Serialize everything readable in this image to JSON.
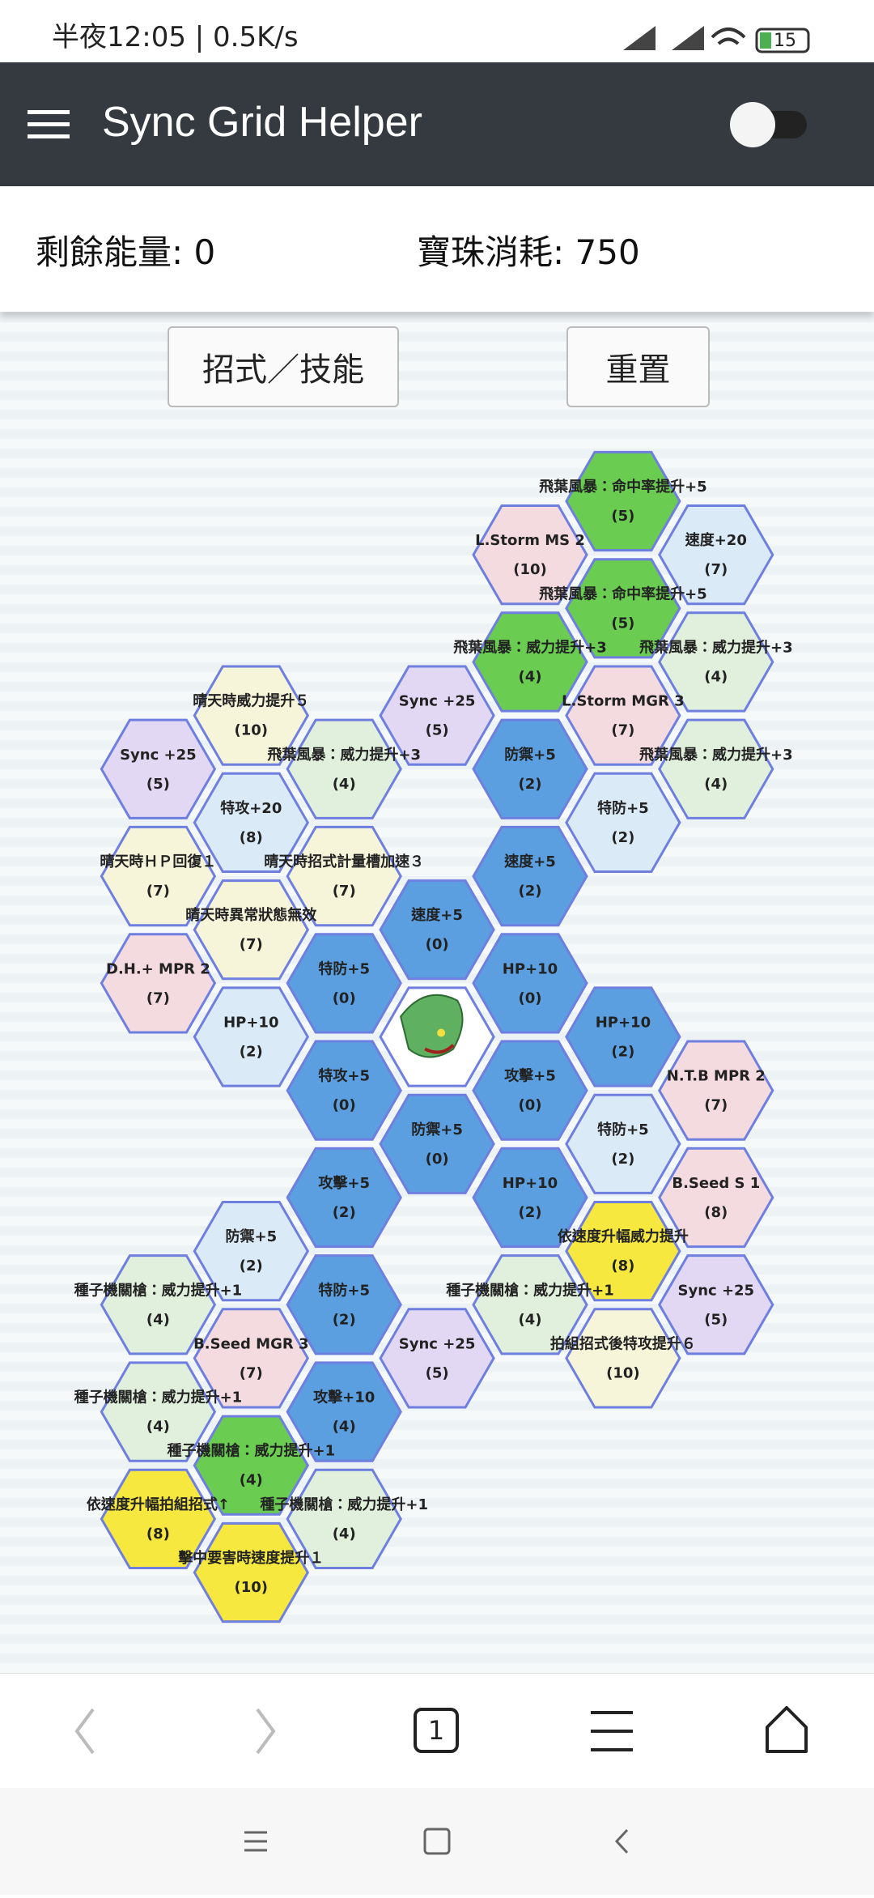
{
  "status_bar": {
    "time": "半夜12:05 | 0.5K/s",
    "battery": "15"
  },
  "app_bar": {
    "title": "Sync Grid Helper"
  },
  "info": {
    "energy": "剩餘能量: 0",
    "orb_cost": "寶珠消耗: 750"
  },
  "buttons": [
    "招式／技能",
    "重置"
  ],
  "grid": {
    "nodes": [
      {
        "label": "飛葉風暴：命中率提升+5",
        "cost": "(5)",
        "color": "#6acc50"
      },
      {
        "label": "L.Storm MS 2",
        "cost": "(10)",
        "color": "#f4dbe0"
      },
      {
        "label": "速度+20",
        "cost": "(7)",
        "color": "#dbeaf7"
      },
      {
        "label": "飛葉風暴：命中率提升+5",
        "cost": "(5)",
        "color": "#6acc50"
      },
      {
        "label": "飛葉風暴：威力提升+3",
        "cost": "(4)",
        "color": "#6acc50"
      },
      {
        "label": "飛葉風暴：威力提升+3",
        "cost": "(4)",
        "color": "#e1f0dc"
      },
      {
        "label": "晴天時威力提升５",
        "cost": "(10)",
        "color": "#f6f4d9"
      },
      {
        "label": "Sync +25",
        "cost": "(5)",
        "color": "#e3d8f4"
      },
      {
        "label": "L.Storm MGR 3",
        "cost": "(7)",
        "color": "#f4dbe0"
      },
      {
        "label": "Sync +25",
        "cost": "(5)",
        "color": "#e3d8f4"
      },
      {
        "label": "飛葉風暴：威力提升+3",
        "cost": "(4)",
        "color": "#e1f0dc"
      },
      {
        "label": "防禦+5",
        "cost": "(2)",
        "color": "#5b9fe0"
      },
      {
        "label": "飛葉風暴：威力提升+3",
        "cost": "(4)",
        "color": "#e1f0dc"
      },
      {
        "label": "特攻+20",
        "cost": "(8)",
        "color": "#dbeaf7"
      },
      {
        "label": "特防+5",
        "cost": "(2)",
        "color": "#dbeaf7"
      },
      {
        "label": "晴天時ＨＰ回復１",
        "cost": "(7)",
        "color": "#f6f4d9"
      },
      {
        "label": "晴天時招式計量槽加速３",
        "cost": "(7)",
        "color": "#f6f4d9"
      },
      {
        "label": "速度+5",
        "cost": "(2)",
        "color": "#5b9fe0"
      },
      {
        "label": "晴天時異常狀態無效",
        "cost": "(7)",
        "color": "#f6f4d9"
      },
      {
        "label": "速度+5",
        "cost": "(0)",
        "color": "#5b9fe0"
      },
      {
        "label": "D.H.+ MPR 2",
        "cost": "(7)",
        "color": "#f4dbe0"
      },
      {
        "label": "特防+5",
        "cost": "(0)",
        "color": "#5b9fe0"
      },
      {
        "label": "HP+10",
        "cost": "(0)",
        "color": "#5b9fe0"
      },
      {
        "label": "HP+10",
        "cost": "(2)",
        "color": "#dbeaf7"
      },
      {
        "label": "HP+10",
        "cost": "(2)",
        "color": "#5b9fe0"
      },
      {
        "label": "特攻+5",
        "cost": "(0)",
        "color": "#5b9fe0"
      },
      {
        "label": "攻擊+5",
        "cost": "(0)",
        "color": "#5b9fe0"
      },
      {
        "label": "N.T.B MPR 2",
        "cost": "(7)",
        "color": "#f4dbe0"
      },
      {
        "label": "防禦+5",
        "cost": "(0)",
        "color": "#5b9fe0"
      },
      {
        "label": "特防+5",
        "cost": "(2)",
        "color": "#dbeaf7"
      },
      {
        "label": "攻擊+5",
        "cost": "(2)",
        "color": "#5b9fe0"
      },
      {
        "label": "HP+10",
        "cost": "(2)",
        "color": "#5b9fe0"
      },
      {
        "label": "B.Seed S 1",
        "cost": "(8)",
        "color": "#f4dbe0"
      },
      {
        "label": "防禦+5",
        "cost": "(2)",
        "color": "#dbeaf7"
      },
      {
        "label": "依速度升幅威力提升",
        "cost": "(8)",
        "color": "#f6e83e"
      },
      {
        "label": "種子機關槍：威力提升+1",
        "cost": "(4)",
        "color": "#e1f0dc"
      },
      {
        "label": "特防+5",
        "cost": "(2)",
        "color": "#5b9fe0"
      },
      {
        "label": "種子機關槍：威力提升+1",
        "cost": "(4)",
        "color": "#e1f0dc"
      },
      {
        "label": "Sync +25",
        "cost": "(5)",
        "color": "#e3d8f4"
      },
      {
        "label": "B.Seed MGR 3",
        "cost": "(7)",
        "color": "#f4dbe0"
      },
      {
        "label": "Sync +25",
        "cost": "(5)",
        "color": "#e3d8f4"
      },
      {
        "label": "拍組招式後特攻提升６",
        "cost": "(10)",
        "color": "#f6f4d9"
      },
      {
        "label": "種子機關槍：威力提升+1",
        "cost": "(4)",
        "color": "#e1f0dc"
      },
      {
        "label": "攻擊+10",
        "cost": "(4)",
        "color": "#5b9fe0"
      },
      {
        "label": "種子機關槍：威力提升+1",
        "cost": "(4)",
        "color": "#6acc50"
      },
      {
        "label": "依速度升幅拍組招式↑",
        "cost": "(8)",
        "color": "#f6e83e"
      },
      {
        "label": "種子機關槍：威力提升+1",
        "cost": "(4)",
        "color": "#e1f0dc"
      },
      {
        "label": "擊中要害時速度提升１",
        "cost": "(10)",
        "color": "#f6e83e"
      }
    ]
  },
  "browser_nav": {
    "tab_count": "1"
  }
}
